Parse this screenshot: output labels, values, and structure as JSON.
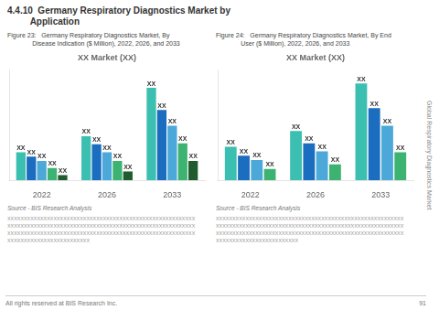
{
  "title": "4.4.10  Germany Respiratory Diagnostics Market by\n         Application",
  "annotations": [
    "Global Respiratory Diagnostics Market",
    "All rights reserved at BIS Research Inc.",
    "91"
  ],
  "chart_data": [
    {
      "type": "bar",
      "title": "XX Market (XX)",
      "subtitle": "Figure 23:   Germany Respiratory Diagnostics Market, By\n              Disease Indication ($ Million), 2022, 2026, and 2033",
      "categories": [
        "2022",
        "2026",
        "2033"
      ],
      "series": [
        {
          "color": "#3BBFB0",
          "values": [
            3.2,
            5.0,
            10.5
          ],
          "value_labels": [
            "XX",
            "XX",
            "XX"
          ]
        },
        {
          "color": "#1B6DBF",
          "values": [
            2.7,
            4.1,
            8.0
          ],
          "value_labels": [
            "XX",
            "XX",
            "XX"
          ]
        },
        {
          "color": "#4BA8D8",
          "values": [
            2.2,
            3.2,
            6.2
          ],
          "value_labels": [
            "XX",
            "XX",
            "XX"
          ]
        },
        {
          "color": "#3CB371",
          "values": [
            1.4,
            2.2,
            4.2
          ],
          "value_labels": [
            "XX",
            "XX",
            "XX"
          ]
        },
        {
          "color": "#1F5C2E",
          "values": [
            0.6,
            1.0,
            2.2
          ],
          "value_labels": [
            "XX",
            "XX",
            "XX"
          ]
        }
      ],
      "ylim": [
        0,
        12.5
      ],
      "grid": false,
      "tick_labels": "x",
      "data_labels": true,
      "annotations": [
        "Source - BIS Research Analysis",
        "XXXXXXXXXXXXXXXXXXXXXXXXXXXXXXXXXXXXXXXXXXXXXXXXXXXXXXXXX",
        "XXXXXXXXXXXXXXXXXXXXXXXXXXXXXXXXXXXXXXXXXXXXXXXXXXXXXXXXX",
        "XXXXXXXXXXXXXXXXXXXXXXXXXXXXXXXXXXXXXXXXXXXXXXXXXXXXXXXXX",
        "XXXXXXXXXXXXXXXXXXXXXXXXX"
      ]
    },
    {
      "type": "bar",
      "title": "XX Market (XX)",
      "subtitle": "Figure 24:   Germany Respiratory Diagnostics Market, By End\n              User ($ Million), 2022, 2026, and 2033",
      "categories": [
        "2022",
        "2026",
        "2033"
      ],
      "series": [
        {
          "color": "#3BBFB0",
          "values": [
            3.8,
            5.6,
            11.0
          ],
          "value_labels": [
            "XX",
            "XX",
            "XX"
          ]
        },
        {
          "color": "#1B6DBF",
          "values": [
            2.8,
            4.2,
            8.2
          ],
          "value_labels": [
            "XX",
            "XX",
            "XX"
          ]
        },
        {
          "color": "#4BA8D8",
          "values": [
            2.3,
            3.3,
            6.2
          ],
          "value_labels": [
            "XX",
            "XX",
            "XX"
          ]
        },
        {
          "color": "#3CB371",
          "values": [
            1.3,
            1.8,
            3.2
          ],
          "value_labels": [
            "XX",
            "XX",
            "XX"
          ]
        }
      ],
      "ylim": [
        0,
        12.5
      ],
      "grid": false,
      "tick_labels": "x",
      "data_labels": true,
      "annotations": [
        "Source - BIS Research Analysis",
        "XXXXXXXXXXXXXXXXXXXXXXXXXXXXXXXXXXXXXXXXXXXXXXXXXXXXXXXXX",
        "XXXXXXXXXXXXXXXXXXXXXXXXXXXXXXXXXXXXXXXXXXXXXXXXXXXXXXXXX",
        "XXXXXXXXXXXXXXXXXXXXXXXXXXXXXXXXXXXXXXXXXXXXXXXXXXXXXXXXX",
        "XXXXXXXXXXXXXXXXXXXXXXXXX"
      ]
    }
  ]
}
